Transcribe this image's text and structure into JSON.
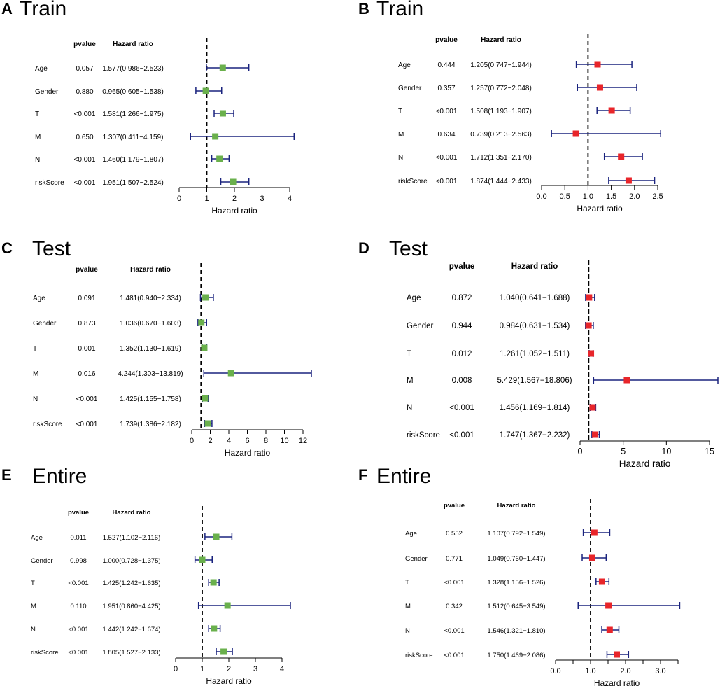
{
  "figure": {
    "column_headers": {
      "pvalue": "pvalue",
      "hazard": "Hazard ratio"
    },
    "axis_label": "Hazard ratio",
    "colors": {
      "green": "#6ab04c",
      "red": "#e8252a",
      "line": "#1a237e"
    }
  },
  "chart_data": [
    {
      "type": "forest",
      "panel": "A",
      "title": "Train",
      "marker": "green",
      "xlabel": "Hazard ratio",
      "xlim": [
        0,
        4
      ],
      "reference": 1,
      "ticks": [
        0,
        1,
        2,
        3,
        4
      ],
      "tick_labels": [
        "0",
        "1",
        "2",
        "3",
        "4"
      ],
      "rows": [
        {
          "label": "Age",
          "pvalue": "0.057",
          "hr_text": "1.577(0.986−2.523)",
          "hr": 1.577,
          "lo": 0.986,
          "hi": 2.523
        },
        {
          "label": "Gender",
          "pvalue": "0.880",
          "hr_text": "0.965(0.605−1.538)",
          "hr": 0.965,
          "lo": 0.605,
          "hi": 1.538
        },
        {
          "label": "T",
          "pvalue": "<0.001",
          "hr_text": "1.581(1.266−1.975)",
          "hr": 1.581,
          "lo": 1.266,
          "hi": 1.975
        },
        {
          "label": "M",
          "pvalue": "0.650",
          "hr_text": "1.307(0.411−4.159)",
          "hr": 1.307,
          "lo": 0.411,
          "hi": 4.159
        },
        {
          "label": "N",
          "pvalue": "<0.001",
          "hr_text": "1.460(1.179−1.807)",
          "hr": 1.46,
          "lo": 1.179,
          "hi": 1.807
        },
        {
          "label": "riskScore",
          "pvalue": "<0.001",
          "hr_text": "1.951(1.507−2.524)",
          "hr": 1.951,
          "lo": 1.507,
          "hi": 2.524
        }
      ]
    },
    {
      "type": "forest",
      "panel": "B",
      "title": "Train",
      "marker": "red",
      "xlabel": "Hazard ratio",
      "xlim": [
        0,
        2.5
      ],
      "reference": 1,
      "ticks": [
        0,
        0.5,
        1,
        1.5,
        2,
        2.5
      ],
      "tick_labels": [
        "0.0",
        "0.5",
        "1.0",
        "1.5",
        "2.0",
        "2.5"
      ],
      "rows": [
        {
          "label": "Age",
          "pvalue": "0.444",
          "hr_text": "1.205(0.747−1.944)",
          "hr": 1.205,
          "lo": 0.747,
          "hi": 1.944
        },
        {
          "label": "Gender",
          "pvalue": "0.357",
          "hr_text": "1.257(0.772−2.048)",
          "hr": 1.257,
          "lo": 0.772,
          "hi": 2.048
        },
        {
          "label": "T",
          "pvalue": "<0.001",
          "hr_text": "1.508(1.193−1.907)",
          "hr": 1.508,
          "lo": 1.193,
          "hi": 1.907
        },
        {
          "label": "M",
          "pvalue": "0.634",
          "hr_text": "0.739(0.213−2.563)",
          "hr": 0.739,
          "lo": 0.213,
          "hi": 2.563
        },
        {
          "label": "N",
          "pvalue": "<0.001",
          "hr_text": "1.712(1.351−2.170)",
          "hr": 1.712,
          "lo": 1.351,
          "hi": 2.17
        },
        {
          "label": "riskScore",
          "pvalue": "<0.001",
          "hr_text": "1.874(1.444−2.433)",
          "hr": 1.874,
          "lo": 1.444,
          "hi": 2.433
        }
      ]
    },
    {
      "type": "forest",
      "panel": "C",
      "title": "Test",
      "marker": "green",
      "xlabel": "Hazard ratio",
      "xlim": [
        0,
        12
      ],
      "reference": 1,
      "ticks": [
        0,
        2,
        4,
        6,
        8,
        10,
        12
      ],
      "tick_labels": [
        "0",
        "2",
        "4",
        "6",
        "8",
        "10",
        "12"
      ],
      "rows": [
        {
          "label": "Age",
          "pvalue": "0.091",
          "hr_text": "1.481(0.940−2.334)",
          "hr": 1.481,
          "lo": 0.94,
          "hi": 2.334
        },
        {
          "label": "Gender",
          "pvalue": "0.873",
          "hr_text": "1.036(0.670−1.603)",
          "hr": 1.036,
          "lo": 0.67,
          "hi": 1.603
        },
        {
          "label": "T",
          "pvalue": "0.001",
          "hr_text": "1.352(1.130−1.619)",
          "hr": 1.352,
          "lo": 1.13,
          "hi": 1.619
        },
        {
          "label": "M",
          "pvalue": "0.016",
          "hr_text": "4.244(1.303−13.819)",
          "hr": 4.244,
          "lo": 1.303,
          "hi": 13.819
        },
        {
          "label": "N",
          "pvalue": "<0.001",
          "hr_text": "1.425(1.155−1.758)",
          "hr": 1.425,
          "lo": 1.155,
          "hi": 1.758
        },
        {
          "label": "riskScore",
          "pvalue": "<0.001",
          "hr_text": "1.739(1.386−2.182)",
          "hr": 1.739,
          "lo": 1.386,
          "hi": 2.182
        }
      ]
    },
    {
      "type": "forest",
      "panel": "D",
      "title": "Test",
      "marker": "red",
      "xlabel": "Hazard ratio",
      "xlim": [
        0,
        15
      ],
      "reference": 1,
      "ticks": [
        0,
        5,
        10,
        15
      ],
      "tick_labels": [
        "0",
        "5",
        "10",
        "15"
      ],
      "rows": [
        {
          "label": "Age",
          "pvalue": "0.872",
          "hr_text": "1.040(0.641−1.688)",
          "hr": 1.04,
          "lo": 0.641,
          "hi": 1.688
        },
        {
          "label": "Gender",
          "pvalue": "0.944",
          "hr_text": "0.984(0.631−1.534)",
          "hr": 0.984,
          "lo": 0.631,
          "hi": 1.534
        },
        {
          "label": "T",
          "pvalue": "0.012",
          "hr_text": "1.261(1.052−1.511)",
          "hr": 1.261,
          "lo": 1.052,
          "hi": 1.511
        },
        {
          "label": "M",
          "pvalue": "0.008",
          "hr_text": "5.429(1.567−18.806)",
          "hr": 5.429,
          "lo": 1.567,
          "hi": 18.806
        },
        {
          "label": "N",
          "pvalue": "<0.001",
          "hr_text": "1.456(1.169−1.814)",
          "hr": 1.456,
          "lo": 1.169,
          "hi": 1.814
        },
        {
          "label": "riskScore",
          "pvalue": "<0.001",
          "hr_text": "1.747(1.367−2.232)",
          "hr": 1.747,
          "lo": 1.367,
          "hi": 2.232
        }
      ]
    },
    {
      "type": "forest",
      "panel": "E",
      "title": "Entire",
      "marker": "green",
      "xlabel": "Hazard ratio",
      "xlim": [
        0,
        4
      ],
      "reference": 1,
      "ticks": [
        0,
        1,
        2,
        3,
        4
      ],
      "tick_labels": [
        "0",
        "1",
        "2",
        "3",
        "4"
      ],
      "rows": [
        {
          "label": "Age",
          "pvalue": "0.011",
          "hr_text": "1.527(1.102−2.116)",
          "hr": 1.527,
          "lo": 1.102,
          "hi": 2.116
        },
        {
          "label": "Gender",
          "pvalue": "0.998",
          "hr_text": "1.000(0.728−1.375)",
          "hr": 1.0,
          "lo": 0.728,
          "hi": 1.375
        },
        {
          "label": "T",
          "pvalue": "<0.001",
          "hr_text": "1.425(1.242−1.635)",
          "hr": 1.425,
          "lo": 1.242,
          "hi": 1.635
        },
        {
          "label": "M",
          "pvalue": "0.110",
          "hr_text": "1.951(0.860−4.425)",
          "hr": 1.951,
          "lo": 0.86,
          "hi": 4.425
        },
        {
          "label": "N",
          "pvalue": "<0.001",
          "hr_text": "1.442(1.242−1.674)",
          "hr": 1.442,
          "lo": 1.242,
          "hi": 1.674
        },
        {
          "label": "riskScore",
          "pvalue": "<0.001",
          "hr_text": "1.805(1.527−2.133)",
          "hr": 1.805,
          "lo": 1.527,
          "hi": 2.133
        }
      ]
    },
    {
      "type": "forest",
      "panel": "F",
      "title": "Entire",
      "marker": "red",
      "xlabel": "Hazard ratio",
      "xlim": [
        0,
        3.5
      ],
      "reference": 1,
      "ticks": [
        0,
        0.5,
        1,
        1.5,
        2,
        2.5,
        3,
        3.5
      ],
      "tick_labels": [
        "0.0",
        "",
        "1.0",
        "",
        "2.0",
        "",
        "3.0",
        ""
      ],
      "rows": [
        {
          "label": "Age",
          "pvalue": "0.552",
          "hr_text": "1.107(0.792−1.549)",
          "hr": 1.107,
          "lo": 0.792,
          "hi": 1.549
        },
        {
          "label": "Gender",
          "pvalue": "0.771",
          "hr_text": "1.049(0.760−1.447)",
          "hr": 1.049,
          "lo": 0.76,
          "hi": 1.447
        },
        {
          "label": "T",
          "pvalue": "<0.001",
          "hr_text": "1.328(1.156−1.526)",
          "hr": 1.328,
          "lo": 1.156,
          "hi": 1.526
        },
        {
          "label": "M",
          "pvalue": "0.342",
          "hr_text": "1.512(0.645−3.549)",
          "hr": 1.512,
          "lo": 0.645,
          "hi": 3.549
        },
        {
          "label": "N",
          "pvalue": "<0.001",
          "hr_text": "1.546(1.321−1.810)",
          "hr": 1.546,
          "lo": 1.321,
          "hi": 1.81
        },
        {
          "label": "riskScore",
          "pvalue": "<0.001",
          "hr_text": "1.750(1.469−2.086)",
          "hr": 1.75,
          "lo": 1.469,
          "hi": 2.086
        }
      ]
    }
  ]
}
